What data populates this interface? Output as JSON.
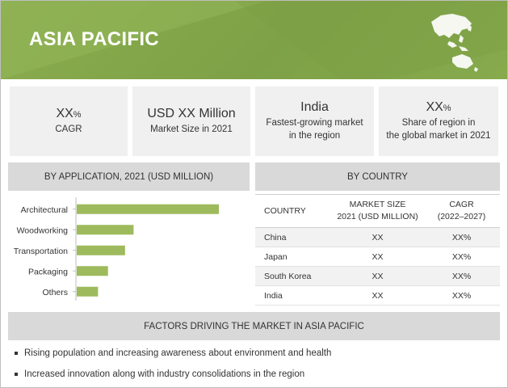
{
  "header": {
    "title": "ASIA PACIFIC",
    "map_icon": "asia-pacific-map-icon"
  },
  "stats": [
    {
      "value": "XX",
      "unit": "%",
      "label": "CAGR"
    },
    {
      "value": "USD XX Million",
      "unit": "",
      "label": "Market Size in 2021"
    },
    {
      "value": "India",
      "unit": "",
      "label_line1": "Fastest-growing market",
      "label_line2": "in the region"
    },
    {
      "value": "XX",
      "unit": "%",
      "label_line1": "Share of region in",
      "label_line2": "the global market in 2021"
    }
  ],
  "application_section": {
    "title": "BY APPLICATION, 2021 (USD MILLION)"
  },
  "country_section": {
    "title": "BY COUNTRY"
  },
  "chart_data": {
    "type": "bar",
    "orientation": "horizontal",
    "categories": [
      "Architectural",
      "Woodworking",
      "Transportation",
      "Packaging",
      "Others"
    ],
    "values": [
      100,
      40,
      34,
      22,
      15
    ],
    "bar_color": "#9dbb5c",
    "axis_max": 100,
    "grid": false
  },
  "country_table": {
    "headers": {
      "country": "COUNTRY",
      "size_line1": "MARKET SIZE",
      "size_line2": "2021 (USD MILLION)",
      "cagr_line1": "CAGR",
      "cagr_line2": "(2022–2027)"
    },
    "rows": [
      {
        "country": "China",
        "size": "XX",
        "cagr": "XX%"
      },
      {
        "country": "Japan",
        "size": "XX",
        "cagr": "XX%"
      },
      {
        "country": "South Korea",
        "size": "XX",
        "cagr": "XX%"
      },
      {
        "country": "India",
        "size": "XX",
        "cagr": "XX%"
      }
    ]
  },
  "factors": {
    "title": "FACTORS DRIVING THE MARKET IN ASIA PACIFIC",
    "items": [
      "Rising population and increasing awareness about environment and health",
      "Increased innovation along with industry consolidations in the region"
    ]
  },
  "colors": {
    "header_green": "#7ea147",
    "bar_green": "#9dbb5c",
    "card_gray": "#f0f0f0",
    "section_gray": "#d9d9d9"
  }
}
